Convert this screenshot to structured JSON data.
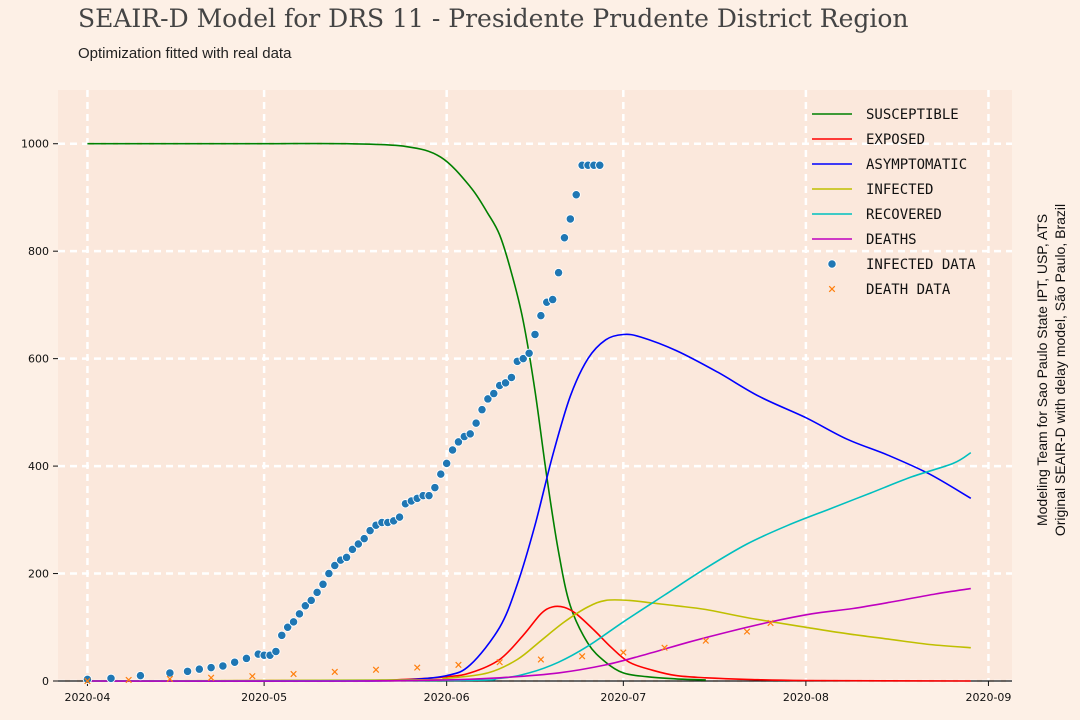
{
  "header": {
    "title": "SEAIR-D Model for DRS 11 - Presidente Prudente District Region",
    "subtitle": "Optimization fitted with real data"
  },
  "credit": {
    "line1": "Modeling Team for Sao Paulo State IPT, USP, ATS",
    "line2": "Original SEAIR-D with delay model, São Paulo, Brazil"
  },
  "chart_data": {
    "type": "line",
    "xlim": [
      "2020-03-27",
      "2020-09-05"
    ],
    "ylim": [
      0,
      1100
    ],
    "x_ticks": [
      "2020-04",
      "2020-05",
      "2020-06",
      "2020-07",
      "2020-08",
      "2020-09"
    ],
    "y_ticks": [
      0,
      200,
      400,
      600,
      800,
      1000
    ],
    "grid": true,
    "legend_position": "top-right",
    "colors": {
      "background": "#fdf0e6",
      "plot_area": "#fbe8dc",
      "grid": "#ffffff",
      "susceptible": "#008000",
      "exposed": "#ff0000",
      "asymptomatic": "#0000ff",
      "infected": "#bfbf00",
      "recovered": "#00bfbf",
      "deaths": "#bf00bf",
      "infected_data": "#1f77b4",
      "death_data": "#ff7f0e"
    },
    "series": [
      {
        "name": "SUSCEPTIBLE",
        "kind": "line",
        "color": "#008000",
        "x": [
          "2020-04-01",
          "2020-04-15",
          "2020-05-01",
          "2020-05-15",
          "2020-05-25",
          "2020-05-31",
          "2020-06-05",
          "2020-06-08",
          "2020-06-10",
          "2020-06-12",
          "2020-06-14",
          "2020-06-16",
          "2020-06-18",
          "2020-06-20",
          "2020-06-22",
          "2020-06-25",
          "2020-06-28",
          "2020-07-01",
          "2020-07-05",
          "2020-07-10",
          "2020-07-15"
        ],
        "values": [
          1000,
          1000,
          1000,
          1000,
          995,
          975,
          920,
          870,
          830,
          760,
          670,
          540,
          380,
          240,
          140,
          70,
          35,
          15,
          8,
          4,
          2
        ]
      },
      {
        "name": "EXPOSED",
        "kind": "line",
        "color": "#ff0000",
        "x": [
          "2020-04-01",
          "2020-05-15",
          "2020-05-25",
          "2020-06-01",
          "2020-06-05",
          "2020-06-10",
          "2020-06-14",
          "2020-06-17",
          "2020-06-19",
          "2020-06-21",
          "2020-06-23",
          "2020-06-26",
          "2020-06-29",
          "2020-07-02",
          "2020-07-06",
          "2020-07-10",
          "2020-07-15",
          "2020-07-22",
          "2020-08-01",
          "2020-08-29"
        ],
        "values": [
          0,
          1,
          3,
          8,
          15,
          40,
          85,
          125,
          138,
          137,
          125,
          95,
          62,
          35,
          20,
          10,
          6,
          3,
          1,
          0
        ]
      },
      {
        "name": "ASYMPTOMATIC",
        "kind": "line",
        "color": "#0000ff",
        "x": [
          "2020-04-01",
          "2020-05-15",
          "2020-05-25",
          "2020-06-01",
          "2020-06-05",
          "2020-06-10",
          "2020-06-13",
          "2020-06-16",
          "2020-06-19",
          "2020-06-22",
          "2020-06-25",
          "2020-06-28",
          "2020-07-01",
          "2020-07-04",
          "2020-07-10",
          "2020-07-17",
          "2020-07-24",
          "2020-08-01",
          "2020-08-08",
          "2020-08-15",
          "2020-08-22",
          "2020-08-29"
        ],
        "values": [
          0,
          0,
          2,
          10,
          30,
          100,
          180,
          290,
          420,
          530,
          600,
          635,
          645,
          640,
          615,
          575,
          530,
          490,
          450,
          420,
          385,
          340
        ]
      },
      {
        "name": "INFECTED",
        "kind": "line",
        "color": "#bfbf00",
        "x": [
          "2020-04-01",
          "2020-05-25",
          "2020-06-01",
          "2020-06-08",
          "2020-06-13",
          "2020-06-17",
          "2020-06-21",
          "2020-06-25",
          "2020-06-28",
          "2020-07-02",
          "2020-07-06",
          "2020-07-10",
          "2020-07-15",
          "2020-07-22",
          "2020-08-01",
          "2020-08-08",
          "2020-08-15",
          "2020-08-22",
          "2020-08-29"
        ],
        "values": [
          0,
          2,
          5,
          15,
          40,
          75,
          110,
          138,
          150,
          150,
          145,
          140,
          133,
          118,
          100,
          88,
          78,
          68,
          62
        ]
      },
      {
        "name": "RECOVERED",
        "kind": "line",
        "color": "#00bfbf",
        "x": [
          "2020-04-01",
          "2020-06-01",
          "2020-06-10",
          "2020-06-15",
          "2020-06-20",
          "2020-06-25",
          "2020-07-01",
          "2020-07-08",
          "2020-07-15",
          "2020-07-22",
          "2020-07-29",
          "2020-08-05",
          "2020-08-12",
          "2020-08-19",
          "2020-08-26",
          "2020-08-29"
        ],
        "values": [
          0,
          1,
          5,
          15,
          35,
          65,
          110,
          160,
          210,
          255,
          290,
          320,
          350,
          380,
          405,
          425
        ]
      },
      {
        "name": "DEATHS",
        "kind": "line",
        "color": "#bf00bf",
        "x": [
          "2020-04-01",
          "2020-05-15",
          "2020-06-01",
          "2020-06-10",
          "2020-06-20",
          "2020-06-28",
          "2020-07-05",
          "2020-07-12",
          "2020-07-19",
          "2020-07-26",
          "2020-08-02",
          "2020-08-09",
          "2020-08-16",
          "2020-08-23",
          "2020-08-29"
        ],
        "values": [
          0,
          0,
          2,
          6,
          15,
          30,
          50,
          72,
          92,
          110,
          125,
          135,
          148,
          162,
          172
        ]
      },
      {
        "name": "INFECTED DATA",
        "kind": "scatter",
        "marker": "circle",
        "color": "#1f77b4",
        "x": [
          "2020-04-01",
          "2020-04-05",
          "2020-04-10",
          "2020-04-15",
          "2020-04-18",
          "2020-04-20",
          "2020-04-22",
          "2020-04-24",
          "2020-04-26",
          "2020-04-28",
          "2020-04-30",
          "2020-05-01",
          "2020-05-02",
          "2020-05-03",
          "2020-05-04",
          "2020-05-05",
          "2020-05-06",
          "2020-05-07",
          "2020-05-08",
          "2020-05-09",
          "2020-05-10",
          "2020-05-11",
          "2020-05-12",
          "2020-05-13",
          "2020-05-14",
          "2020-05-15",
          "2020-05-16",
          "2020-05-17",
          "2020-05-18",
          "2020-05-19",
          "2020-05-20",
          "2020-05-21",
          "2020-05-22",
          "2020-05-23",
          "2020-05-24",
          "2020-05-25",
          "2020-05-26",
          "2020-05-27",
          "2020-05-28",
          "2020-05-29",
          "2020-05-30",
          "2020-05-31",
          "2020-06-01",
          "2020-06-02",
          "2020-06-03",
          "2020-06-04",
          "2020-06-05",
          "2020-06-06",
          "2020-06-07",
          "2020-06-08",
          "2020-06-09",
          "2020-06-10",
          "2020-06-11",
          "2020-06-12",
          "2020-06-13",
          "2020-06-14",
          "2020-06-15",
          "2020-06-16",
          "2020-06-17",
          "2020-06-18",
          "2020-06-19",
          "2020-06-20",
          "2020-06-21",
          "2020-06-22",
          "2020-06-23",
          "2020-06-24",
          "2020-06-25",
          "2020-06-26",
          "2020-06-27"
        ],
        "values": [
          3,
          5,
          10,
          15,
          18,
          22,
          25,
          28,
          35,
          42,
          50,
          48,
          48,
          55,
          85,
          100,
          110,
          125,
          140,
          150,
          165,
          180,
          200,
          215,
          225,
          230,
          245,
          255,
          265,
          280,
          290,
          295,
          295,
          298,
          305,
          330,
          335,
          340,
          345,
          345,
          360,
          385,
          405,
          430,
          445,
          455,
          460,
          480,
          505,
          525,
          535,
          550,
          555,
          565,
          595,
          600,
          610,
          645,
          680,
          705,
          710,
          760,
          825,
          860,
          905,
          960,
          960,
          960,
          960
        ]
      },
      {
        "name": "DEATH DATA",
        "kind": "scatter",
        "marker": "x",
        "color": "#ff7f0e",
        "x": [
          "2020-04-01",
          "2020-04-08",
          "2020-04-15",
          "2020-04-22",
          "2020-04-29",
          "2020-05-06",
          "2020-05-13",
          "2020-05-20",
          "2020-05-27",
          "2020-06-03",
          "2020-06-10",
          "2020-06-17",
          "2020-06-24",
          "2020-07-01",
          "2020-07-08",
          "2020-07-15",
          "2020-07-22",
          "2020-07-26"
        ],
        "values": [
          0,
          2,
          4,
          6,
          9,
          13,
          17,
          21,
          25,
          30,
          35,
          40,
          46,
          53,
          62,
          75,
          92,
          108
        ]
      }
    ]
  }
}
